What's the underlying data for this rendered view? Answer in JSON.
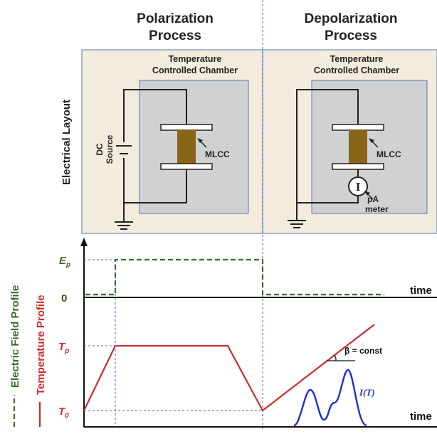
{
  "headers": {
    "left_line1": "Polarization",
    "left_line2": "Process",
    "right_line1": "Depolarization",
    "right_line2": "Process"
  },
  "layout_label": "Electrical Layout",
  "left_panel": {
    "chamber_line1": "Temperature",
    "chamber_line2": "Controlled Chamber",
    "source_line1": "DC",
    "source_line2": "Source",
    "capacitor": "MLCC"
  },
  "right_panel": {
    "chamber_line1": "Temperature",
    "chamber_line2": "Controlled Chamber",
    "capacitor": "MLCC",
    "meter_symbol": "I",
    "meter_line1": "pA",
    "meter_line2": "meter"
  },
  "profiles": {
    "field_legend": "Electric Field Profile",
    "temp_legend": "Temperature Profile",
    "field_axis_main": "E",
    "field_axis_sub": "p",
    "zero": "0",
    "time_top": "time",
    "temp_high_main": "T",
    "temp_high_sub": "p",
    "temp_low_main": "T",
    "temp_low_sub": "0",
    "time_bottom": "time",
    "beta_label": "β = const",
    "current_label": "I(T)"
  },
  "colors": {
    "field": "#3e6a2a",
    "temperature": "#d22a2a",
    "current": "#1a2fe0",
    "divider": "#4a63d8",
    "panel_fill": "#f3ecdd",
    "panel_border": "#8aa3c7",
    "chamber_fill": "#cfd1d3",
    "chamber_border": "#5a78b0",
    "mlcc": "#8a6416"
  }
}
